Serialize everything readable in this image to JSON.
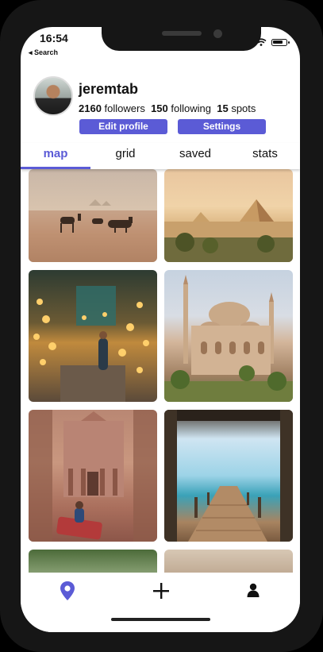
{
  "status_bar": {
    "time": "16:54",
    "back_label": "◂ Search"
  },
  "profile": {
    "username": "jeremtab",
    "followers_count": "2160",
    "followers_label": "followers",
    "following_count": "150",
    "following_label": "following",
    "spots_count": "15",
    "spots_label": "spots",
    "edit_label": "Edit profile",
    "settings_label": "Settings"
  },
  "tabs": [
    {
      "label": "map",
      "active": true
    },
    {
      "label": "grid",
      "active": false
    },
    {
      "label": "saved",
      "active": false
    },
    {
      "label": "stats",
      "active": false
    }
  ],
  "photos": [
    {
      "subject": "camels near pyramids"
    },
    {
      "subject": "pyramids of Giza"
    },
    {
      "subject": "lantern market"
    },
    {
      "subject": "mosque"
    },
    {
      "subject": "Petra treasury"
    },
    {
      "subject": "wooden pier"
    },
    {
      "subject": "palm trees"
    },
    {
      "subject": "stone ruins"
    }
  ],
  "bottom_nav": {
    "icons": [
      "location-pin-icon",
      "plus-icon",
      "person-icon"
    ]
  },
  "colors": {
    "accent": "#5b5bd6",
    "bezel": "#161616"
  }
}
